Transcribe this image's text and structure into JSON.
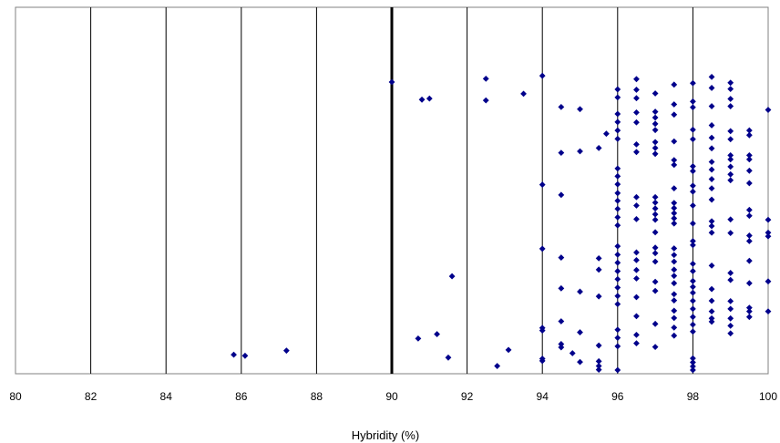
{
  "chart_data": {
    "type": "scatter",
    "title": "",
    "xlabel": "Hybridity (%)",
    "ylabel": "",
    "xlim": [
      80,
      100
    ],
    "ylim": [
      0,
      100
    ],
    "x_ticks": [
      80,
      82,
      84,
      86,
      88,
      90,
      92,
      94,
      96,
      98,
      100
    ],
    "x_tick_labels": [
      "80",
      "82",
      "84",
      "86",
      "88",
      "90",
      "92",
      "94",
      "96",
      "98",
      "100"
    ],
    "vertical_gridlines": true,
    "threshold_line_x": 90,
    "marker_color": "#00008B",
    "series": [
      {
        "points": [
          [
            85.8,
            5.2
          ],
          [
            86.1,
            4.9
          ],
          [
            87.2,
            6.3
          ],
          [
            90.0,
            79.6
          ],
          [
            90.8,
            74.8
          ],
          [
            91.0,
            75.1
          ],
          [
            91.6,
            26.6
          ],
          [
            91.2,
            10.8
          ],
          [
            90.7,
            9.6
          ],
          [
            91.5,
            4.4
          ],
          [
            92.5,
            80.5
          ],
          [
            92.5,
            74.6
          ],
          [
            93.5,
            76.4
          ],
          [
            93.1,
            6.5
          ],
          [
            92.8,
            2.1
          ],
          [
            94.0,
            81.3
          ],
          [
            94.0,
            51.6
          ],
          [
            94.0,
            34.1
          ],
          [
            94.0,
            12.5
          ],
          [
            94.0,
            11.8
          ],
          [
            94.0,
            4.1
          ],
          [
            94.0,
            3.5
          ],
          [
            94.5,
            72.8
          ],
          [
            94.5,
            60.3
          ],
          [
            94.5,
            48.8
          ],
          [
            94.5,
            31.7
          ],
          [
            94.5,
            23.3
          ],
          [
            94.5,
            14.3
          ],
          [
            94.5,
            8.1
          ],
          [
            94.5,
            7.2
          ],
          [
            95.0,
            72.2
          ],
          [
            95.0,
            60.7
          ],
          [
            95.0,
            22.4
          ],
          [
            95.0,
            11.3
          ],
          [
            95.0,
            3.2
          ],
          [
            94.8,
            5.6
          ],
          [
            95.5,
            61.6
          ],
          [
            95.5,
            31.5
          ],
          [
            95.5,
            28.4
          ],
          [
            95.5,
            21.1
          ],
          [
            95.5,
            7.7
          ],
          [
            95.5,
            3.4
          ],
          [
            95.5,
            2.1
          ],
          [
            95.5,
            1.1
          ],
          [
            95.7,
            65.5
          ],
          [
            96.0,
            77.6
          ],
          [
            96.0,
            75.4
          ],
          [
            96.0,
            70.9
          ],
          [
            96.0,
            68.7
          ],
          [
            96.0,
            66.4
          ],
          [
            96.0,
            64.1
          ],
          [
            96.0,
            56.0
          ],
          [
            96.0,
            53.9
          ],
          [
            96.0,
            51.7
          ],
          [
            96.0,
            49.3
          ],
          [
            96.0,
            47.2
          ],
          [
            96.0,
            45.0
          ],
          [
            96.0,
            42.7
          ],
          [
            96.0,
            40.5
          ],
          [
            96.0,
            34.8
          ],
          [
            96.0,
            32.5
          ],
          [
            96.0,
            30.3
          ],
          [
            96.0,
            28.0
          ],
          [
            96.0,
            25.8
          ],
          [
            96.0,
            23.5
          ],
          [
            96.0,
            21.2
          ],
          [
            96.0,
            19.0
          ],
          [
            96.0,
            12.0
          ],
          [
            96.0,
            9.8
          ],
          [
            96.0,
            7.5
          ],
          [
            96.0,
            1.0
          ],
          [
            96.5,
            80.4
          ],
          [
            96.5,
            77.5
          ],
          [
            96.5,
            75.2
          ],
          [
            96.5,
            71.3
          ],
          [
            96.5,
            68.6
          ],
          [
            96.5,
            62.6
          ],
          [
            96.5,
            60.5
          ],
          [
            96.5,
            48.2
          ],
          [
            96.5,
            45.9
          ],
          [
            96.5,
            42.2
          ],
          [
            96.5,
            33.1
          ],
          [
            96.5,
            31.0
          ],
          [
            96.5,
            28.3
          ],
          [
            96.5,
            26.0
          ],
          [
            96.5,
            20.9
          ],
          [
            96.5,
            15.7
          ],
          [
            96.5,
            10.6
          ],
          [
            96.5,
            8.3
          ],
          [
            97.0,
            76.5
          ],
          [
            97.0,
            71.5
          ],
          [
            97.0,
            69.9
          ],
          [
            97.0,
            68.2
          ],
          [
            97.0,
            66.5
          ],
          [
            97.0,
            63.2
          ],
          [
            97.0,
            61.6
          ],
          [
            97.0,
            60.0
          ],
          [
            97.0,
            48.2
          ],
          [
            97.0,
            46.7
          ],
          [
            97.0,
            45.1
          ],
          [
            97.0,
            43.5
          ],
          [
            97.0,
            42.0
          ],
          [
            97.0,
            38.6
          ],
          [
            97.0,
            34.4
          ],
          [
            97.0,
            32.9
          ],
          [
            97.0,
            30.6
          ],
          [
            97.0,
            25.1
          ],
          [
            97.0,
            22.6
          ],
          [
            97.0,
            13.6
          ],
          [
            97.0,
            7.3
          ],
          [
            97.5,
            78.9
          ],
          [
            97.5,
            73.5
          ],
          [
            97.5,
            70.7
          ],
          [
            97.5,
            63.4
          ],
          [
            97.5,
            58.3
          ],
          [
            97.5,
            57.0
          ],
          [
            97.5,
            50.6
          ],
          [
            97.5,
            46.6
          ],
          [
            97.5,
            45.2
          ],
          [
            97.5,
            43.8
          ],
          [
            97.5,
            42.4
          ],
          [
            97.5,
            41.0
          ],
          [
            97.5,
            34.2
          ],
          [
            97.5,
            32.4
          ],
          [
            97.5,
            30.6
          ],
          [
            97.5,
            28.4
          ],
          [
            97.5,
            26.7
          ],
          [
            97.5,
            24.7
          ],
          [
            97.5,
            21.7
          ],
          [
            97.5,
            20.0
          ],
          [
            97.5,
            17.2
          ],
          [
            97.5,
            15.2
          ],
          [
            97.5,
            12.6
          ],
          [
            97.5,
            10.4
          ],
          [
            98.0,
            79.3
          ],
          [
            98.0,
            74.3
          ],
          [
            98.0,
            72.7
          ],
          [
            98.0,
            66.6
          ],
          [
            98.0,
            64.0
          ],
          [
            98.0,
            56.6
          ],
          [
            98.0,
            55.3
          ],
          [
            98.0,
            51.3
          ],
          [
            98.0,
            49.7
          ],
          [
            98.0,
            45.9
          ],
          [
            98.0,
            41.0
          ],
          [
            98.0,
            36.2
          ],
          [
            98.0,
            35.1
          ],
          [
            98.0,
            30.0
          ],
          [
            98.0,
            28.0
          ],
          [
            98.0,
            25.3
          ],
          [
            98.0,
            23.7
          ],
          [
            98.0,
            22.1
          ],
          [
            98.0,
            19.9
          ],
          [
            98.0,
            17.7
          ],
          [
            98.0,
            15.5
          ],
          [
            98.0,
            13.4
          ],
          [
            98.0,
            11.5
          ],
          [
            98.0,
            4.2
          ],
          [
            98.0,
            3.1
          ],
          [
            98.0,
            2.0
          ],
          [
            98.0,
            1.0
          ],
          [
            98.5,
            81.0
          ],
          [
            98.5,
            78.0
          ],
          [
            98.5,
            73.0
          ],
          [
            98.5,
            67.8
          ],
          [
            98.5,
            64.4
          ],
          [
            98.5,
            61.5
          ],
          [
            98.5,
            57.8
          ],
          [
            98.5,
            55.7
          ],
          [
            98.5,
            53.1
          ],
          [
            98.5,
            50.6
          ],
          [
            98.5,
            47.5
          ],
          [
            98.5,
            41.6
          ],
          [
            98.5,
            40.3
          ],
          [
            98.5,
            38.5
          ],
          [
            98.5,
            29.5
          ],
          [
            98.5,
            23.1
          ],
          [
            98.5,
            19.9
          ],
          [
            98.5,
            17.0
          ],
          [
            98.5,
            15.1
          ],
          [
            98.5,
            14.2
          ],
          [
            99.0,
            79.4
          ],
          [
            99.0,
            77.7
          ],
          [
            99.0,
            75.0
          ],
          [
            99.0,
            73.0
          ],
          [
            99.0,
            66.2
          ],
          [
            99.0,
            64.0
          ],
          [
            99.0,
            59.6
          ],
          [
            99.0,
            58.5
          ],
          [
            99.0,
            56.5
          ],
          [
            99.0,
            54.4
          ],
          [
            99.0,
            52.8
          ],
          [
            99.0,
            42.1
          ],
          [
            99.0,
            38.4
          ],
          [
            99.0,
            27.5
          ],
          [
            99.0,
            25.6
          ],
          [
            99.0,
            19.8
          ],
          [
            99.0,
            17.7
          ],
          [
            99.0,
            15.1
          ],
          [
            99.0,
            13.1
          ],
          [
            99.0,
            11.0
          ],
          [
            99.5,
            66.4
          ],
          [
            99.5,
            65.1
          ],
          [
            99.5,
            59.6
          ],
          [
            99.5,
            58.5
          ],
          [
            99.5,
            55.4
          ],
          [
            99.5,
            52.0
          ],
          [
            99.5,
            44.7
          ],
          [
            99.5,
            43.1
          ],
          [
            99.5,
            37.7
          ],
          [
            99.5,
            36.2
          ],
          [
            99.5,
            30.8
          ],
          [
            99.5,
            24.7
          ],
          [
            99.5,
            18.0
          ],
          [
            99.5,
            17.0
          ],
          [
            99.5,
            15.5
          ],
          [
            100.0,
            72.0
          ],
          [
            100.0,
            42.0
          ],
          [
            100.0,
            38.5
          ],
          [
            100.0,
            37.5
          ],
          [
            100.0,
            25.2
          ],
          [
            100.0,
            17.0
          ]
        ]
      }
    ]
  }
}
